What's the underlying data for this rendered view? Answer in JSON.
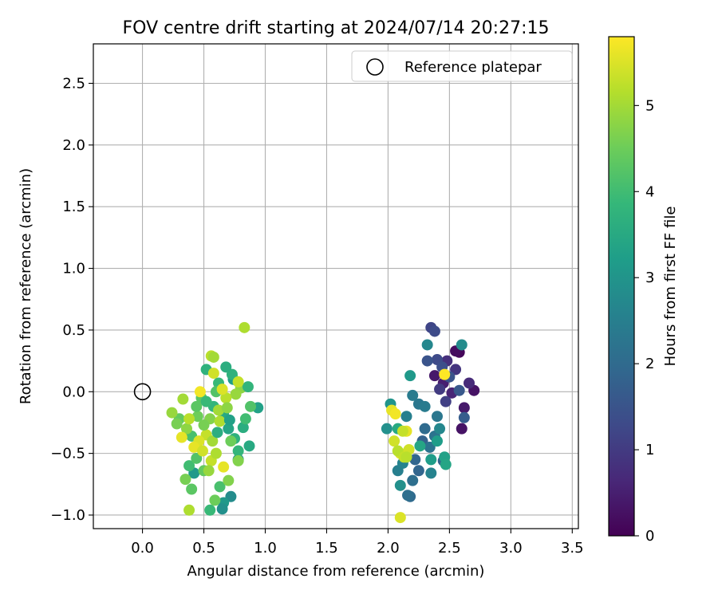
{
  "chart_data": {
    "type": "scatter",
    "title": "FOV centre drift starting at 2024/07/14 20:27:15",
    "xlabel": "Angular distance from reference (arcmin)",
    "ylabel": "Rotation from reference (arcmin)",
    "xlim": [
      -0.4,
      3.55
    ],
    "ylim": [
      -1.11,
      2.82
    ],
    "xticks": [
      "0.0",
      "0.5",
      "1.0",
      "1.5",
      "2.0",
      "2.5",
      "3.0",
      "3.5"
    ],
    "xtick_values": [
      0.0,
      0.5,
      1.0,
      1.5,
      2.0,
      2.5,
      3.0,
      3.5
    ],
    "yticks": [
      "−1.0",
      "−0.5",
      "0.0",
      "0.5",
      "1.0",
      "1.5",
      "2.0",
      "2.5"
    ],
    "ytick_values": [
      -1.0,
      -0.5,
      0.0,
      0.5,
      1.0,
      1.5,
      2.0,
      2.5
    ],
    "grid": true,
    "legend": {
      "position": "top-right",
      "label": "Reference platepar"
    },
    "colorbar": {
      "label": "Hours from first FF file",
      "range": [
        0,
        5.8
      ],
      "ticks": [
        "0",
        "1",
        "2",
        "3",
        "4",
        "5"
      ],
      "tick_values": [
        0,
        1,
        2,
        3,
        4,
        5
      ],
      "colormap": "viridis"
    },
    "reference_point": {
      "x": 0.0,
      "y": 0.0
    },
    "points": [
      {
        "x": 2.58,
        "y": 0.32,
        "h": 0.1
      },
      {
        "x": 2.55,
        "y": 0.33,
        "h": 0.2
      },
      {
        "x": 2.6,
        "y": -0.3,
        "h": 0.3
      },
      {
        "x": 2.7,
        "y": 0.01,
        "h": 0.3
      },
      {
        "x": 2.62,
        "y": -0.13,
        "h": 0.4
      },
      {
        "x": 2.38,
        "y": 0.13,
        "h": 0.4
      },
      {
        "x": 2.45,
        "y": 0.07,
        "h": 0.5
      },
      {
        "x": 2.52,
        "y": -0.01,
        "h": 0.6
      },
      {
        "x": 2.66,
        "y": 0.07,
        "h": 0.7
      },
      {
        "x": 2.48,
        "y": 0.25,
        "h": 0.8
      },
      {
        "x": 2.55,
        "y": 0.18,
        "h": 0.9
      },
      {
        "x": 2.42,
        "y": 0.02,
        "h": 1.0
      },
      {
        "x": 2.47,
        "y": -0.08,
        "h": 1.1
      },
      {
        "x": 2.35,
        "y": 0.52,
        "h": 1.2
      },
      {
        "x": 2.38,
        "y": 0.49,
        "h": 1.3
      },
      {
        "x": 2.4,
        "y": 0.26,
        "h": 1.3
      },
      {
        "x": 2.44,
        "y": 0.2,
        "h": 1.4
      },
      {
        "x": 2.32,
        "y": 0.25,
        "h": 1.5
      },
      {
        "x": 2.5,
        "y": 0.12,
        "h": 1.5
      },
      {
        "x": 2.58,
        "y": 0.01,
        "h": 1.6
      },
      {
        "x": 2.62,
        "y": -0.21,
        "h": 1.7
      },
      {
        "x": 2.45,
        "y": -0.56,
        "h": 1.8
      },
      {
        "x": 2.28,
        "y": -0.4,
        "h": 1.8
      },
      {
        "x": 2.22,
        "y": -0.55,
        "h": 1.9
      },
      {
        "x": 2.25,
        "y": -0.64,
        "h": 1.9
      },
      {
        "x": 2.3,
        "y": -0.3,
        "h": 2.0
      },
      {
        "x": 2.18,
        "y": -0.85,
        "h": 2.0
      },
      {
        "x": 2.16,
        "y": -0.84,
        "h": 2.1
      },
      {
        "x": 2.2,
        "y": -0.72,
        "h": 2.1
      },
      {
        "x": 2.34,
        "y": -0.45,
        "h": 2.2
      },
      {
        "x": 2.38,
        "y": -0.36,
        "h": 2.2
      },
      {
        "x": 2.4,
        "y": -0.2,
        "h": 2.3
      },
      {
        "x": 2.25,
        "y": -0.1,
        "h": 2.3
      },
      {
        "x": 2.2,
        "y": -0.03,
        "h": 2.4
      },
      {
        "x": 2.3,
        "y": -0.12,
        "h": 2.4
      },
      {
        "x": 2.15,
        "y": -0.2,
        "h": 2.5
      },
      {
        "x": 2.08,
        "y": -0.64,
        "h": 2.5
      },
      {
        "x": 2.12,
        "y": -0.58,
        "h": 2.6
      },
      {
        "x": 2.35,
        "y": -0.66,
        "h": 2.6
      },
      {
        "x": 2.42,
        "y": -0.3,
        "h": 2.7
      },
      {
        "x": 2.32,
        "y": 0.38,
        "h": 2.7
      },
      {
        "x": 2.6,
        "y": 0.38,
        "h": 2.8
      },
      {
        "x": 2.1,
        "y": -0.76,
        "h": 2.9
      },
      {
        "x": 1.99,
        "y": -0.3,
        "h": 2.9
      },
      {
        "x": 2.02,
        "y": -0.1,
        "h": 3.0
      },
      {
        "x": 2.18,
        "y": 0.13,
        "h": 3.1
      },
      {
        "x": 2.35,
        "y": -0.55,
        "h": 3.2
      },
      {
        "x": 2.4,
        "y": -0.4,
        "h": 3.2
      },
      {
        "x": 2.46,
        "y": -0.53,
        "h": 3.3
      },
      {
        "x": 2.47,
        "y": -0.59,
        "h": 3.4
      },
      {
        "x": 2.26,
        "y": -0.44,
        "h": 3.4
      },
      {
        "x": 2.08,
        "y": -0.3,
        "h": 3.5
      },
      {
        "x": 2.46,
        "y": 0.14,
        "h": 5.8
      },
      {
        "x": 2.15,
        "y": -0.32,
        "h": 5.6
      },
      {
        "x": 2.12,
        "y": -0.32,
        "h": 5.3
      },
      {
        "x": 2.05,
        "y": -0.4,
        "h": 5.4
      },
      {
        "x": 2.1,
        "y": -0.5,
        "h": 5.5
      },
      {
        "x": 2.08,
        "y": -0.48,
        "h": 5.2
      },
      {
        "x": 2.13,
        "y": -0.53,
        "h": 5.3
      },
      {
        "x": 2.17,
        "y": -0.47,
        "h": 5.4
      },
      {
        "x": 2.03,
        "y": -0.15,
        "h": 5.6
      },
      {
        "x": 2.06,
        "y": -0.18,
        "h": 5.7
      },
      {
        "x": 2.1,
        "y": -1.02,
        "h": 5.5
      },
      {
        "x": 2.15,
        "y": -0.53,
        "h": 5.2
      },
      {
        "x": 0.94,
        "y": -0.13,
        "h": 3.3
      },
      {
        "x": 0.87,
        "y": -0.44,
        "h": 3.5
      },
      {
        "x": 0.82,
        "y": -0.29,
        "h": 3.6
      },
      {
        "x": 0.78,
        "y": -0.55,
        "h": 3.0
      },
      {
        "x": 0.72,
        "y": -0.85,
        "h": 2.8
      },
      {
        "x": 0.66,
        "y": -0.9,
        "h": 3.1
      },
      {
        "x": 0.65,
        "y": -0.95,
        "h": 2.9
      },
      {
        "x": 0.74,
        "y": 0.1,
        "h": 3.2
      },
      {
        "x": 0.73,
        "y": 0.14,
        "h": 3.7
      },
      {
        "x": 0.68,
        "y": 0.2,
        "h": 3.6
      },
      {
        "x": 0.62,
        "y": 0.07,
        "h": 3.9
      },
      {
        "x": 0.58,
        "y": -0.12,
        "h": 3.8
      },
      {
        "x": 0.66,
        "y": -0.18,
        "h": 3.5
      },
      {
        "x": 0.7,
        "y": -0.3,
        "h": 3.4
      },
      {
        "x": 0.75,
        "y": -0.38,
        "h": 3.7
      },
      {
        "x": 0.78,
        "y": -0.48,
        "h": 3.8
      },
      {
        "x": 0.42,
        "y": -0.66,
        "h": 3.1
      },
      {
        "x": 0.38,
        "y": -0.6,
        "h": 4.0
      },
      {
        "x": 0.44,
        "y": -0.54,
        "h": 4.2
      },
      {
        "x": 0.5,
        "y": -0.64,
        "h": 4.4
      },
      {
        "x": 0.55,
        "y": -0.96,
        "h": 3.9
      },
      {
        "x": 0.59,
        "y": -0.88,
        "h": 4.5
      },
      {
        "x": 0.35,
        "y": -0.71,
        "h": 4.6
      },
      {
        "x": 0.4,
        "y": -0.79,
        "h": 4.3
      },
      {
        "x": 0.63,
        "y": -0.77,
        "h": 4.1
      },
      {
        "x": 0.7,
        "y": -0.72,
        "h": 4.7
      },
      {
        "x": 0.8,
        "y": 0.03,
        "h": 4.8
      },
      {
        "x": 0.86,
        "y": 0.04,
        "h": 3.8
      },
      {
        "x": 0.84,
        "y": -0.22,
        "h": 4.0
      },
      {
        "x": 0.6,
        "y": 0.0,
        "h": 4.2
      },
      {
        "x": 0.52,
        "y": 0.18,
        "h": 3.7
      },
      {
        "x": 0.48,
        "y": -0.05,
        "h": 4.3
      },
      {
        "x": 0.45,
        "y": -0.2,
        "h": 4.5
      },
      {
        "x": 0.4,
        "y": -0.36,
        "h": 4.1
      },
      {
        "x": 0.3,
        "y": -0.22,
        "h": 4.4
      },
      {
        "x": 0.28,
        "y": -0.26,
        "h": 4.6
      },
      {
        "x": 0.24,
        "y": -0.17,
        "h": 4.9
      },
      {
        "x": 0.33,
        "y": -0.06,
        "h": 5.0
      },
      {
        "x": 0.36,
        "y": -0.3,
        "h": 4.8
      },
      {
        "x": 0.38,
        "y": -0.96,
        "h": 5.1
      },
      {
        "x": 0.56,
        "y": 0.29,
        "h": 5.2
      },
      {
        "x": 0.58,
        "y": 0.28,
        "h": 5.0
      },
      {
        "x": 0.58,
        "y": 0.15,
        "h": 5.4
      },
      {
        "x": 0.83,
        "y": 0.52,
        "h": 5.1
      },
      {
        "x": 0.78,
        "y": 0.08,
        "h": 5.3
      },
      {
        "x": 0.76,
        "y": -0.02,
        "h": 4.9
      },
      {
        "x": 0.68,
        "y": -0.05,
        "h": 5.2
      },
      {
        "x": 0.62,
        "y": -0.15,
        "h": 5.0
      },
      {
        "x": 0.55,
        "y": -0.22,
        "h": 4.7
      },
      {
        "x": 0.52,
        "y": -0.35,
        "h": 5.3
      },
      {
        "x": 0.46,
        "y": -0.4,
        "h": 5.5
      },
      {
        "x": 0.42,
        "y": -0.45,
        "h": 5.6
      },
      {
        "x": 0.47,
        "y": 0.0,
        "h": 5.7
      },
      {
        "x": 0.49,
        "y": -0.48,
        "h": 5.4
      },
      {
        "x": 0.32,
        "y": -0.37,
        "h": 5.6
      },
      {
        "x": 0.38,
        "y": -0.22,
        "h": 5.2
      },
      {
        "x": 0.63,
        "y": -0.24,
        "h": 5.1
      },
      {
        "x": 0.65,
        "y": 0.02,
        "h": 5.5
      },
      {
        "x": 0.66,
        "y": -0.61,
        "h": 5.6
      },
      {
        "x": 0.56,
        "y": -0.56,
        "h": 5.3
      },
      {
        "x": 0.54,
        "y": -0.64,
        "h": 4.9
      },
      {
        "x": 0.78,
        "y": -0.56,
        "h": 4.7
      },
      {
        "x": 0.72,
        "y": -0.4,
        "h": 4.5
      },
      {
        "x": 0.69,
        "y": -0.13,
        "h": 4.8
      },
      {
        "x": 0.57,
        "y": -0.4,
        "h": 5.0
      },
      {
        "x": 0.6,
        "y": -0.5,
        "h": 5.1
      },
      {
        "x": 0.5,
        "y": -0.27,
        "h": 4.6
      },
      {
        "x": 0.44,
        "y": -0.12,
        "h": 4.3
      },
      {
        "x": 0.88,
        "y": -0.12,
        "h": 4.2
      },
      {
        "x": 0.61,
        "y": -0.33,
        "h": 3.6
      },
      {
        "x": 0.71,
        "y": -0.23,
        "h": 3.3
      },
      {
        "x": 0.52,
        "y": -0.08,
        "h": 3.9
      }
    ]
  }
}
